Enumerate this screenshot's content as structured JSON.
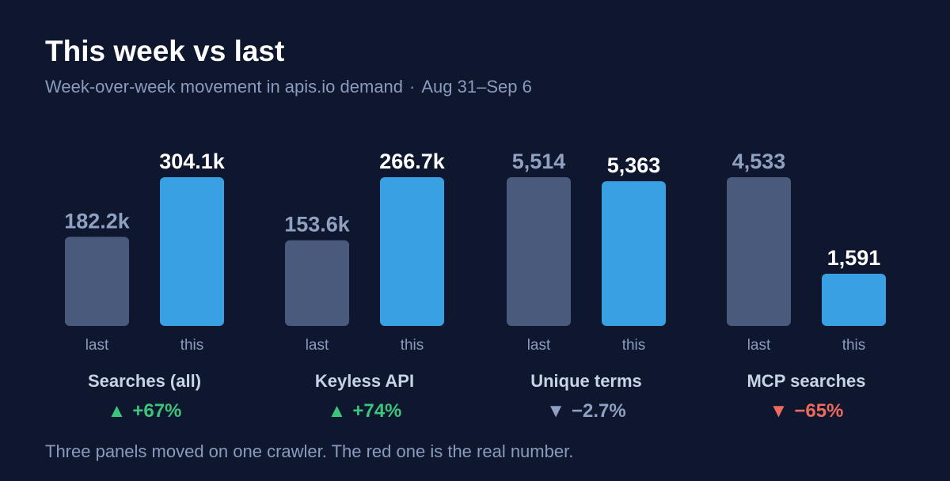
{
  "header": {
    "title": "This week vs last",
    "subtitle_main": "Week-over-week movement in apis.io demand",
    "subtitle_separator": "·",
    "subtitle_range": "Aug 31–Sep 6"
  },
  "footer": {
    "note": "Three panels moved on one crawler. The red one is the real number."
  },
  "colors": {
    "last_bar": "#4a5a7d",
    "this_bar": "#38a0e3",
    "last_label": "#8fa0c0",
    "this_label": "#ffffff",
    "axis_label": "#8b9bbd",
    "panel_name": "#c8d3e6",
    "up": "#3cc47c",
    "down_neutral": "#8fa0c0",
    "down_bad": "#ec6a5e"
  },
  "chart_data": {
    "type": "bar",
    "categories": [
      "last",
      "this"
    ],
    "panels": [
      {
        "name": "Searches (all)",
        "values": [
          182200,
          304100
        ],
        "labels": [
          "182.2k",
          "304.1k"
        ],
        "change_arrow": "▲",
        "change_text": "+67%",
        "change_tone": "up"
      },
      {
        "name": "Keyless API",
        "values": [
          153600,
          266700
        ],
        "labels": [
          "153.6k",
          "266.7k"
        ],
        "change_arrow": "▲",
        "change_text": "+74%",
        "change_tone": "up"
      },
      {
        "name": "Unique terms",
        "values": [
          5514,
          5363
        ],
        "labels": [
          "5,514",
          "5,363"
        ],
        "change_arrow": "▼",
        "change_text": "−2.7%",
        "change_tone": "down_neutral"
      },
      {
        "name": "MCP searches",
        "values": [
          4533,
          1591
        ],
        "labels": [
          "4,533",
          "1,591"
        ],
        "change_arrow": "▼",
        "change_text": "−65%",
        "change_tone": "down_bad"
      }
    ]
  }
}
